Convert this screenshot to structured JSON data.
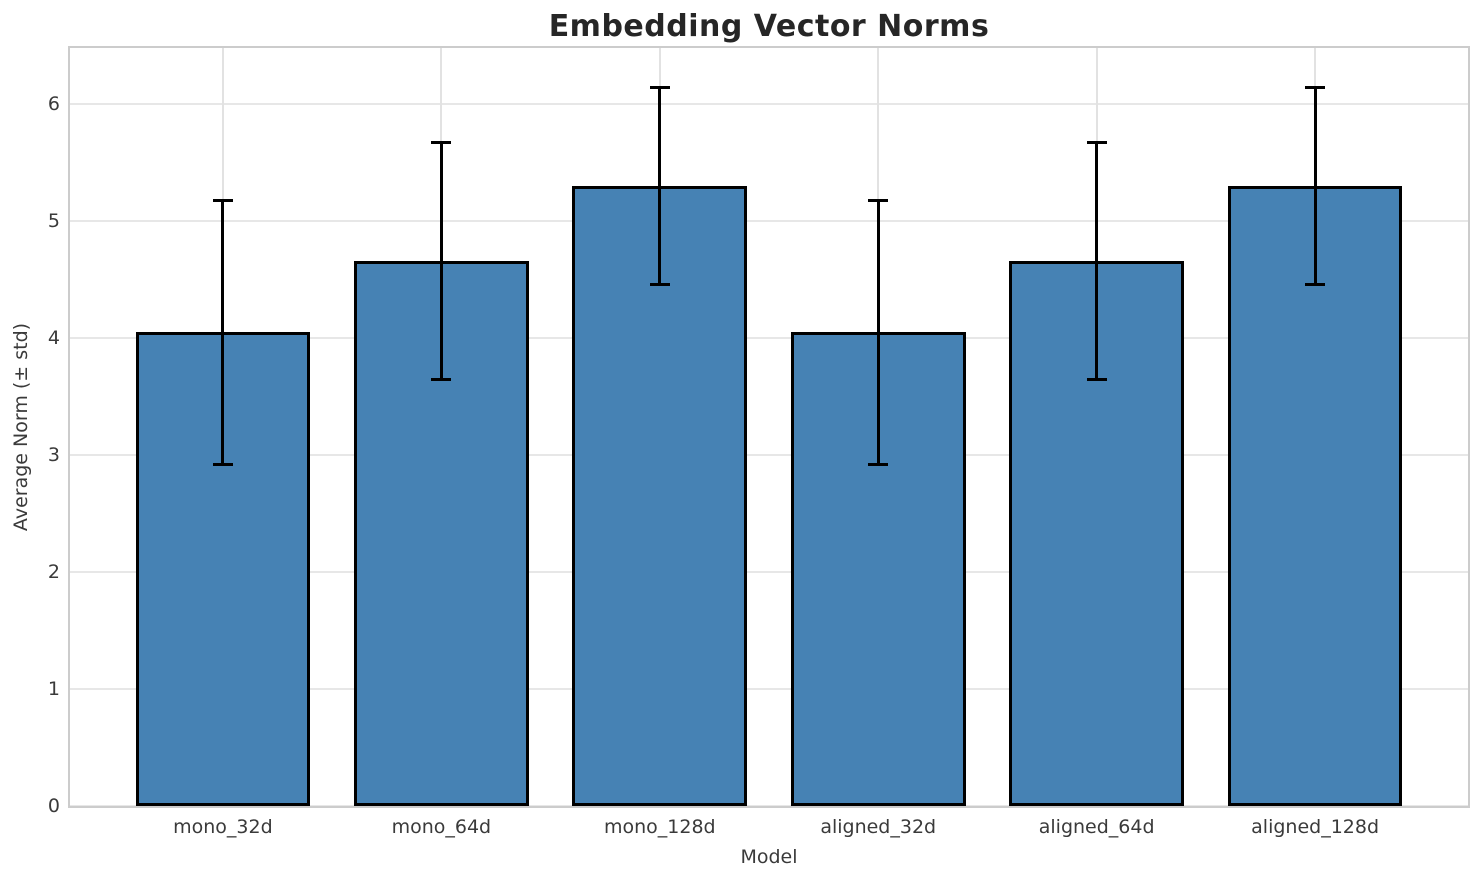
{
  "chart_data": {
    "type": "bar",
    "title": "Embedding Vector Norms",
    "xlabel": "Model",
    "ylabel": "Average Norm (± std)",
    "categories": [
      "mono_32d",
      "mono_64d",
      "mono_128d",
      "aligned_32d",
      "aligned_64d",
      "aligned_128d"
    ],
    "series": [
      {
        "name": "Average Norm",
        "values": [
          4.05,
          4.66,
          5.3,
          4.05,
          4.66,
          5.3
        ],
        "errors": [
          1.13,
          1.01,
          0.84,
          1.13,
          1.01,
          0.84
        ]
      }
    ],
    "yticks": [
      0,
      1,
      2,
      3,
      4,
      5,
      6
    ],
    "ylim": [
      0,
      6.48
    ],
    "xlim": [
      -0.7,
      5.7
    ],
    "bar_width_fraction": 0.8,
    "grid": true,
    "legend": "none",
    "colors": {
      "bar_fill": "#4682B4",
      "bar_edge": "#000000",
      "error_bar": "#000000",
      "grid_h": "#e7e7e7",
      "grid_v": "#e2e2e2",
      "spine": "#cccccc",
      "tick_text": "#3a3a3a",
      "title_text": "#262626"
    }
  }
}
